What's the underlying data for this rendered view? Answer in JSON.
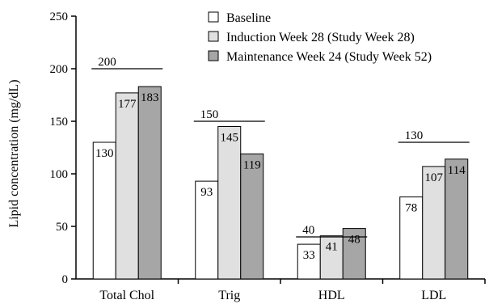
{
  "chart_data": {
    "type": "bar",
    "title": "",
    "xlabel": "",
    "ylabel": "Lipid concentration (mg/dL)",
    "ylim": [
      0,
      250
    ],
    "yticks": [
      0,
      50,
      100,
      150,
      200,
      250
    ],
    "grid": false,
    "legend_position": "top-right",
    "categories": [
      "Total Chol",
      "Trig",
      "HDL",
      "LDL"
    ],
    "series": [
      {
        "name": "Baseline",
        "color": "#ffffff",
        "values": [
          130,
          93,
          33,
          78
        ]
      },
      {
        "name": "Induction Week 28 (Study Week 28)",
        "color": "#e0e0e0",
        "values": [
          177,
          145,
          41,
          107
        ]
      },
      {
        "name": "Maintenance Week 24 (Study Week 52)",
        "color": "#a6a6a6",
        "values": [
          183,
          119,
          48,
          114
        ]
      }
    ],
    "reference_lines": [
      {
        "category": "Total Chol",
        "value": 200,
        "label": "200"
      },
      {
        "category": "Trig",
        "value": 150,
        "label": "150"
      },
      {
        "category": "HDL",
        "value": 40,
        "label": "40"
      },
      {
        "category": "LDL",
        "value": 130,
        "label": "130"
      }
    ]
  }
}
